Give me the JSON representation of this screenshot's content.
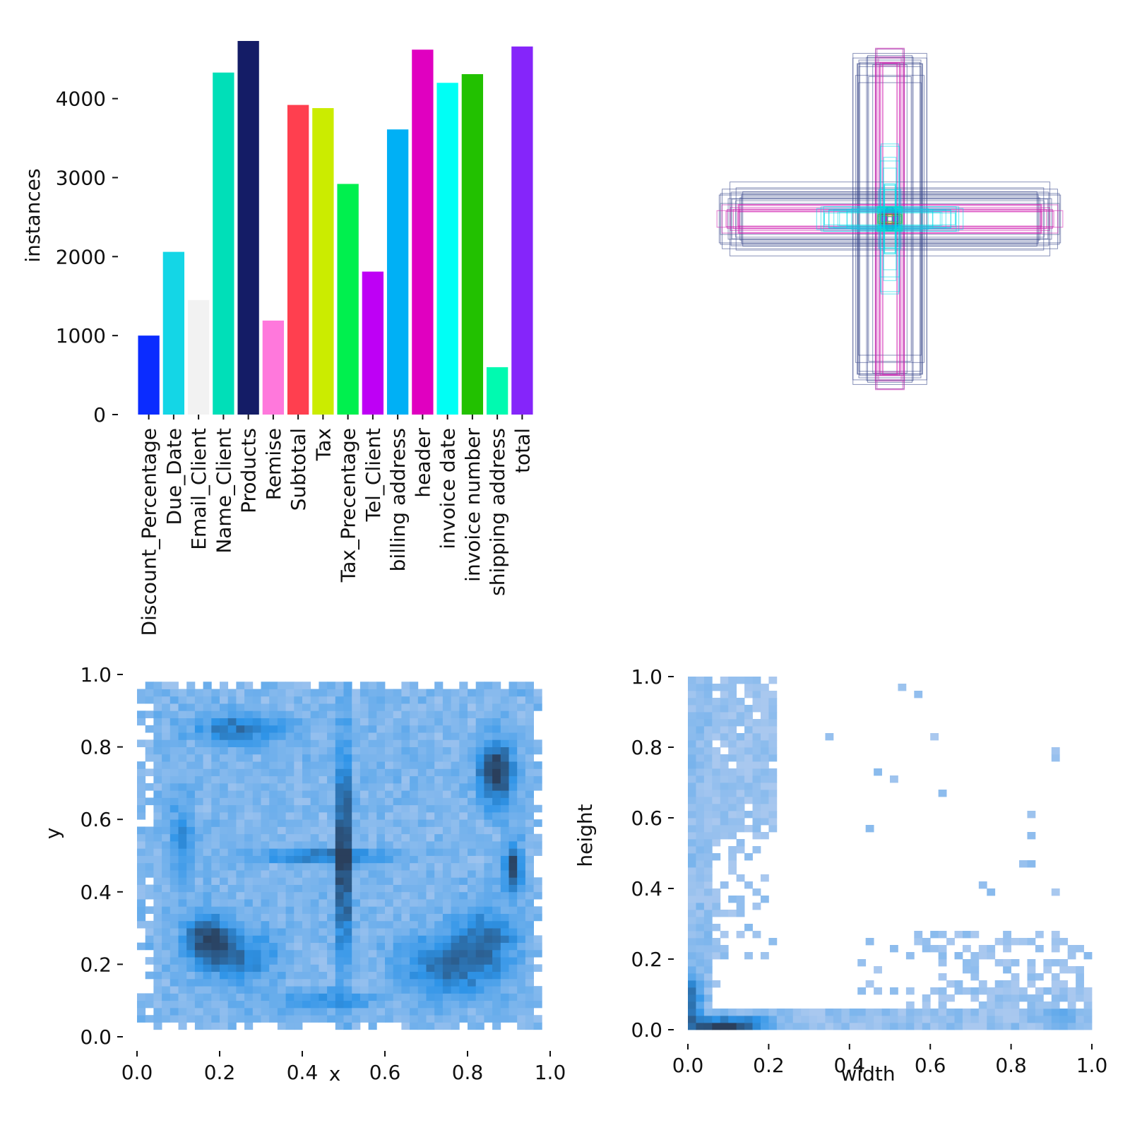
{
  "chart_data": [
    {
      "type": "bar",
      "panel": "class-instance-counts",
      "ylabel": "instances",
      "xlabel": "",
      "ylim": [
        0,
        4730
      ],
      "yticks": [
        "0",
        "1000",
        "2000",
        "3000",
        "4000"
      ],
      "categories": [
        "Discount_Percentage",
        "Due_Date",
        "Email_Client",
        "Name_Client",
        "Products",
        "Remise",
        "Subtotal",
        "Tax",
        "Tax_Precentage",
        "Tel_Client",
        "billing address",
        "header",
        "invoice date",
        "invoice number",
        "shipping address",
        "total"
      ],
      "values": [
        1000,
        2060,
        1450,
        4330,
        4730,
        1190,
        3920,
        3880,
        2920,
        1810,
        3610,
        4620,
        4200,
        4310,
        600,
        4660
      ],
      "colors": [
        "#0b2cff",
        "#14d6e6",
        "#f2f2f2",
        "#00dfb8",
        "#141c66",
        "#ff78dc",
        "#ff3f4f",
        "#cbec00",
        "#00f04e",
        "#be00f5",
        "#00b0f5",
        "#e000c0",
        "#00fff5",
        "#22c100",
        "#00fab0",
        "#8525fa"
      ],
      "grid": false
    },
    {
      "type": "scatter",
      "panel": "box-overlay",
      "description_values": "label boxes drawn centered at (0.5, 0.5)",
      "grid": false
    },
    {
      "type": "heatmap",
      "panel": "x-y-distribution",
      "xlabel": "x",
      "ylabel": "y",
      "xlim": [
        0.0,
        1.0
      ],
      "ylim": [
        0.0,
        1.0
      ],
      "xticks": [
        "0.0",
        "0.2",
        "0.4",
        "0.6",
        "0.8",
        "1.0"
      ],
      "yticks": [
        "0.0",
        "0.2",
        "0.4",
        "0.6",
        "0.8",
        "1.0"
      ],
      "hotspots": [
        {
          "x": 0.5,
          "y": 0.5,
          "sx": 0.012,
          "sy": 0.2,
          "w": 1.0
        },
        {
          "x": 0.45,
          "y": 0.5,
          "sx": 0.12,
          "sy": 0.012,
          "w": 0.55
        },
        {
          "x": 0.87,
          "y": 0.73,
          "sx": 0.03,
          "sy": 0.06,
          "w": 0.9
        },
        {
          "x": 0.91,
          "y": 0.47,
          "sx": 0.015,
          "sy": 0.05,
          "w": 0.75
        },
        {
          "x": 0.17,
          "y": 0.27,
          "sx": 0.04,
          "sy": 0.05,
          "w": 0.7
        },
        {
          "x": 0.25,
          "y": 0.85,
          "sx": 0.08,
          "sy": 0.03,
          "w": 0.5
        },
        {
          "x": 0.76,
          "y": 0.2,
          "sx": 0.08,
          "sy": 0.06,
          "w": 0.55
        },
        {
          "x": 0.25,
          "y": 0.22,
          "sx": 0.06,
          "sy": 0.05,
          "w": 0.45
        },
        {
          "x": 0.11,
          "y": 0.55,
          "sx": 0.02,
          "sy": 0.08,
          "w": 0.35
        },
        {
          "x": 0.85,
          "y": 0.28,
          "sx": 0.05,
          "sy": 0.06,
          "w": 0.4
        },
        {
          "x": 0.45,
          "y": 0.1,
          "sx": 0.08,
          "sy": 0.02,
          "w": 0.35
        }
      ],
      "colors": {
        "low": "#a9c8ef",
        "mid": "#2e94e8",
        "high": "#2a3f5c"
      }
    },
    {
      "type": "heatmap",
      "panel": "width-height-distribution",
      "xlabel": "width",
      "ylabel": "height",
      "xlim": [
        0.0,
        1.0
      ],
      "ylim": [
        0.0,
        1.0
      ],
      "xticks": [
        "0.0",
        "0.2",
        "0.4",
        "0.6",
        "0.8",
        "1.0"
      ],
      "yticks": [
        "0.0",
        "0.2",
        "0.4",
        "0.6",
        "0.8",
        "1.0"
      ],
      "hotspots": [
        {
          "x": 0.07,
          "y": 0.015,
          "sx": 0.05,
          "sy": 0.012,
          "w": 1.0
        },
        {
          "x": 0.015,
          "y": 0.08,
          "sx": 0.012,
          "sy": 0.05,
          "w": 0.7
        },
        {
          "x": 0.16,
          "y": 0.02,
          "sx": 0.04,
          "sy": 0.015,
          "w": 0.5
        },
        {
          "x": 0.92,
          "y": 0.03,
          "sx": 0.03,
          "sy": 0.02,
          "w": 0.25
        }
      ],
      "colors": {
        "low": "#a9c8ef",
        "mid": "#2e94e8",
        "high": "#2a3f5c"
      }
    }
  ]
}
